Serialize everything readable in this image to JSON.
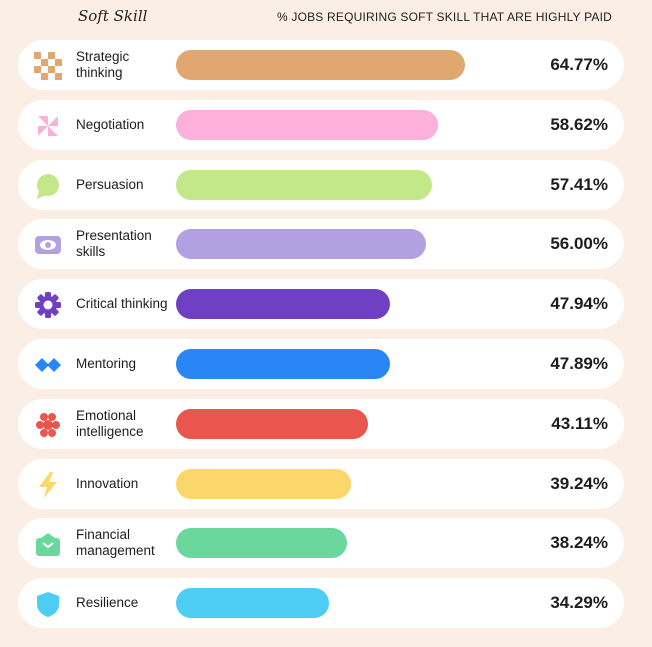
{
  "header": {
    "left_label": "Soft Skill",
    "right_label": "% JOBS REQUIRING SOFT SKILL THAT ARE HIGHLY PAID"
  },
  "chart_data": {
    "type": "bar",
    "orientation": "horizontal",
    "xlabel": "% JOBS REQUIRING SOFT SKILL THAT ARE HIGHLY PAID",
    "ylabel": "Soft Skill",
    "xlim": [
      0,
      80
    ],
    "categories": [
      "Strategic thinking",
      "Negotiation",
      "Persuasion",
      "Presentation skills",
      "Critical thinking",
      "Mentoring",
      "Emotional intelligence",
      "Innovation",
      "Financial management",
      "Resilience"
    ],
    "values": [
      64.77,
      58.62,
      57.41,
      56.0,
      47.94,
      47.89,
      43.11,
      39.24,
      38.24,
      34.29
    ],
    "value_labels": [
      "64.77%",
      "58.62%",
      "57.41%",
      "56.00%",
      "47.94%",
      "47.89%",
      "43.11%",
      "39.24%",
      "38.24%",
      "34.29%"
    ],
    "colors": [
      "#e0a870",
      "#fcb0da",
      "#c3e88a",
      "#b3a0e0",
      "#7040c4",
      "#2a86f5",
      "#e8564e",
      "#fbd76b",
      "#6ad89c",
      "#4ecdf3"
    ],
    "icons": [
      "checker-icon",
      "pinwheel-icon",
      "speech-bubble-icon",
      "eye-icon",
      "gear-icon",
      "diamonds-icon",
      "hearts-icon",
      "lightning-icon",
      "wallet-icon",
      "shield-icon"
    ]
  }
}
